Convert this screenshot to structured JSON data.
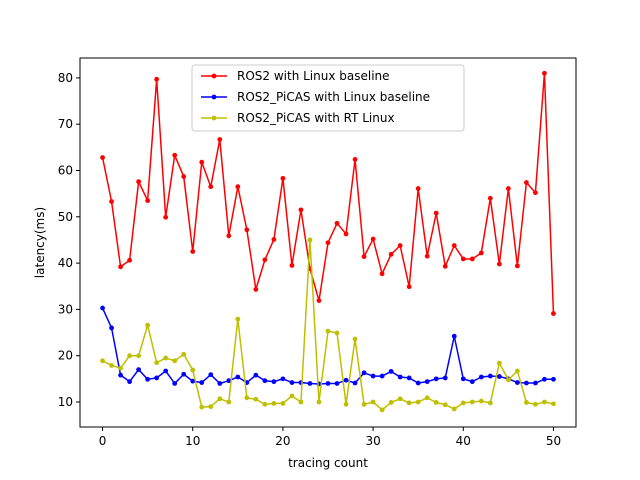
{
  "chart_data": {
    "type": "line",
    "xlabel": "tracing count",
    "ylabel": "latency(ms)",
    "xlim": [
      -2.5,
      52.5
    ],
    "ylim": [
      4.6,
      84.3
    ],
    "xticks": [
      0,
      10,
      20,
      30,
      40,
      50
    ],
    "yticks": [
      10,
      20,
      30,
      40,
      50,
      60,
      70,
      80
    ],
    "grid": false,
    "legend_position": "top-center",
    "x": [
      0,
      1,
      2,
      3,
      4,
      5,
      6,
      7,
      8,
      9,
      10,
      11,
      12,
      13,
      14,
      15,
      16,
      17,
      18,
      19,
      20,
      21,
      22,
      23,
      24,
      25,
      26,
      27,
      28,
      29,
      30,
      31,
      32,
      33,
      34,
      35,
      36,
      37,
      38,
      39,
      40,
      41,
      42,
      43,
      44,
      45,
      46,
      47,
      48,
      49,
      50
    ],
    "series": [
      {
        "name": "ROS2 with Linux baseline",
        "color": "#ff0000",
        "values": [
          62.8,
          53.3,
          39.2,
          40.6,
          57.6,
          53.5,
          79.7,
          49.9,
          63.3,
          58.7,
          42.5,
          61.8,
          56.5,
          66.7,
          45.9,
          56.5,
          47.2,
          34.3,
          40.7,
          45.1,
          58.3,
          39.5,
          51.5,
          38.8,
          31.9,
          44.4,
          48.6,
          46.3,
          62.4,
          41.4,
          45.2,
          37.7,
          41.9,
          43.8,
          34.9,
          56.1,
          41.5,
          50.8,
          39.3,
          43.8,
          40.9,
          40.9,
          42.2,
          54.0,
          39.8,
          56.1,
          39.4,
          57.4,
          55.2,
          81.0,
          29.1
        ]
      },
      {
        "name": "ROS2_PiCAS with Linux baseline",
        "color": "#0000ff",
        "values": [
          30.3,
          26.0,
          15.8,
          14.4,
          17.0,
          14.9,
          15.2,
          16.7,
          14.0,
          16.0,
          14.5,
          14.2,
          15.9,
          14.0,
          14.6,
          15.4,
          14.2,
          15.8,
          14.6,
          14.4,
          15.0,
          14.2,
          14.2,
          14.0,
          13.9,
          14.0,
          14.0,
          14.7,
          14.1,
          16.3,
          15.6,
          15.6,
          16.6,
          15.4,
          15.2,
          14.1,
          14.4,
          15.0,
          15.2,
          24.2,
          15.0,
          14.4,
          15.4,
          15.6,
          15.5,
          15.0,
          14.2,
          14.1,
          14.1,
          14.9,
          14.9
        ]
      },
      {
        "name": "ROS2_PiCAS with RT Linux",
        "color": "#bfbf00",
        "values": [
          18.9,
          17.9,
          17.3,
          20.0,
          20.0,
          26.6,
          18.5,
          19.5,
          18.9,
          20.3,
          16.9,
          8.9,
          9.0,
          10.7,
          10.0,
          27.9,
          10.9,
          10.6,
          9.5,
          9.7,
          9.7,
          11.3,
          10.0,
          45.0,
          10.0,
          25.3,
          24.9,
          9.5,
          23.6,
          9.5,
          10.0,
          8.3,
          9.9,
          10.7,
          9.8,
          10.0,
          10.9,
          9.9,
          9.4,
          8.5,
          9.8,
          10.0,
          10.2,
          9.8,
          18.4,
          14.8,
          16.7,
          9.9,
          9.5,
          10.0,
          9.6
        ]
      }
    ]
  }
}
